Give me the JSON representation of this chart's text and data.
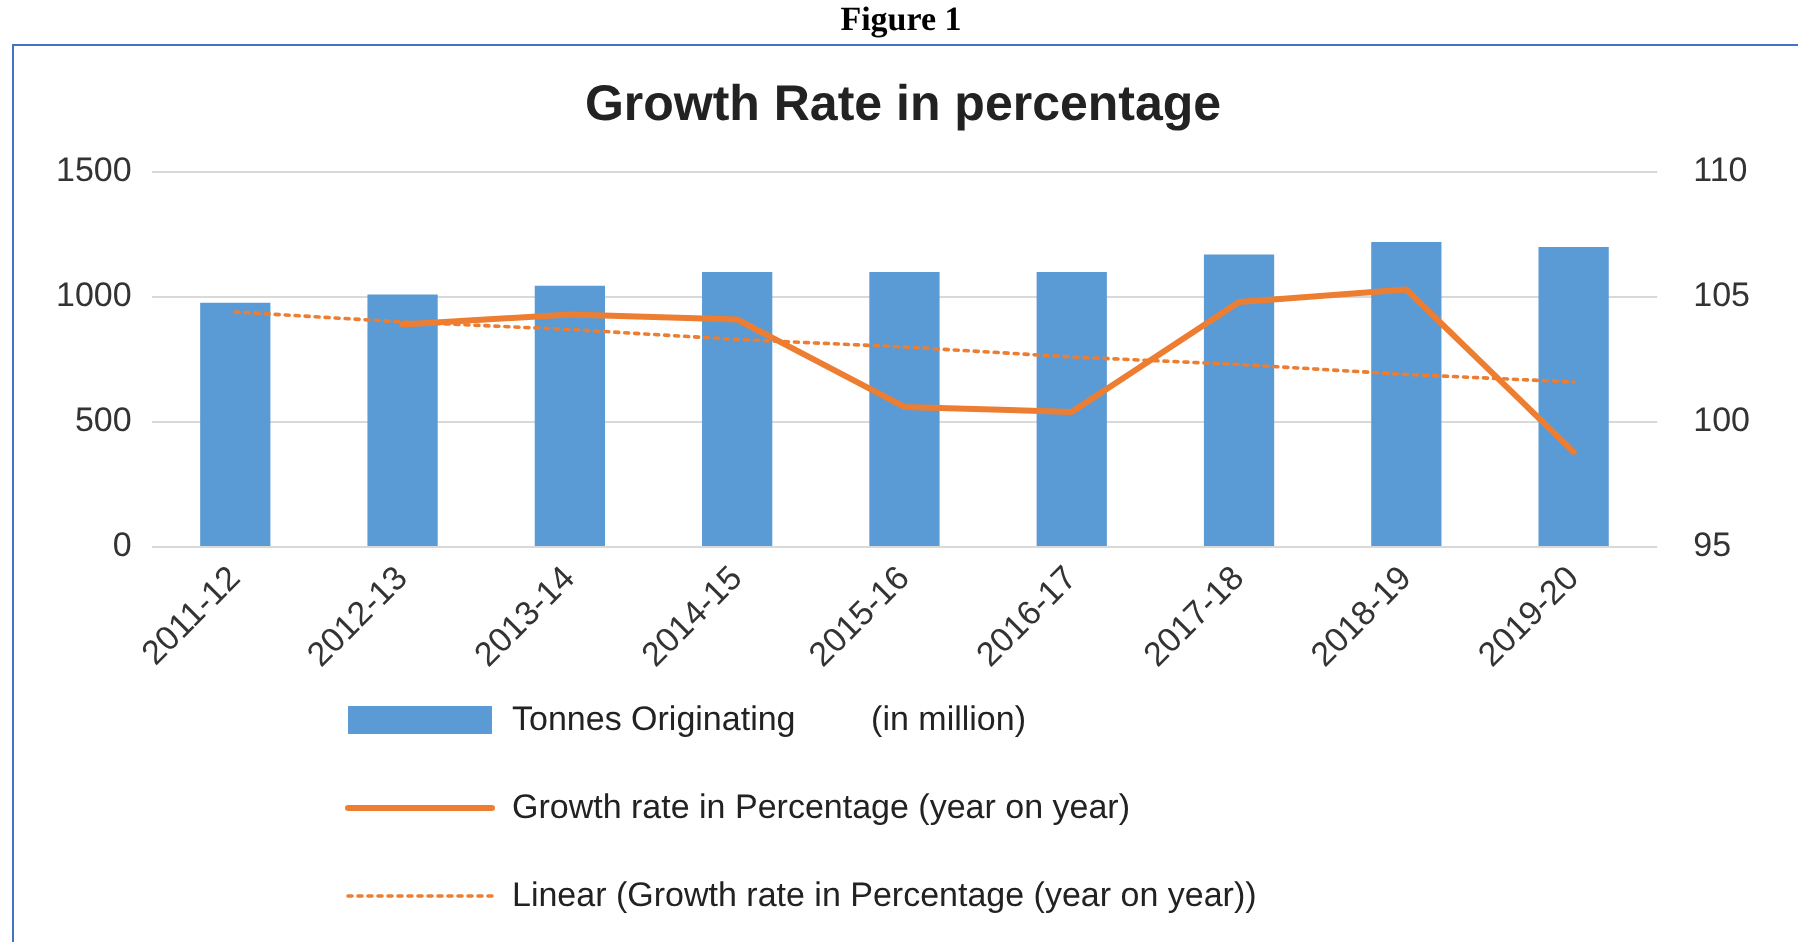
{
  "chart_data": {
    "type": "bar",
    "title": "Growth Rate in percentage",
    "annotations": [
      "Figure 1"
    ],
    "categories": [
      "2011-12",
      "2012-13",
      "2013-14",
      "2014-15",
      "2015-16",
      "2016-17",
      "2017-18",
      "2018-19",
      "2019-20"
    ],
    "series": [
      {
        "name": "Tonnes Originating        (in million)",
        "color": "#5b9bd5",
        "values": [
          977,
          1010,
          1045,
          1100,
          1100,
          1100,
          1170,
          1220,
          1200
        ]
      },
      {
        "name": "Growth rate in Percentage (year on year)",
        "type": "line",
        "axis": "y2",
        "color": "#ed7d31",
        "line_style": "solid",
        "values": [
          null,
          103.9,
          104.3,
          104.1,
          100.6,
          100.4,
          104.8,
          105.3,
          98.8
        ]
      },
      {
        "name": "Linear (Growth rate in Percentage (year on year))",
        "type": "line",
        "axis": "y2",
        "color": "#ed7d31",
        "line_style": "dotted",
        "values": [
          104.4,
          104.0,
          103.7,
          103.3,
          103.0,
          102.6,
          102.3,
          101.9,
          101.6
        ]
      }
    ],
    "ylim": [
      0,
      1500
    ],
    "yticks": [
      0,
      500,
      1000,
      1500
    ],
    "y2lim": [
      95,
      110
    ],
    "y2ticks": [
      95,
      100,
      105,
      110
    ],
    "grid": "y",
    "legend": "bottom"
  }
}
